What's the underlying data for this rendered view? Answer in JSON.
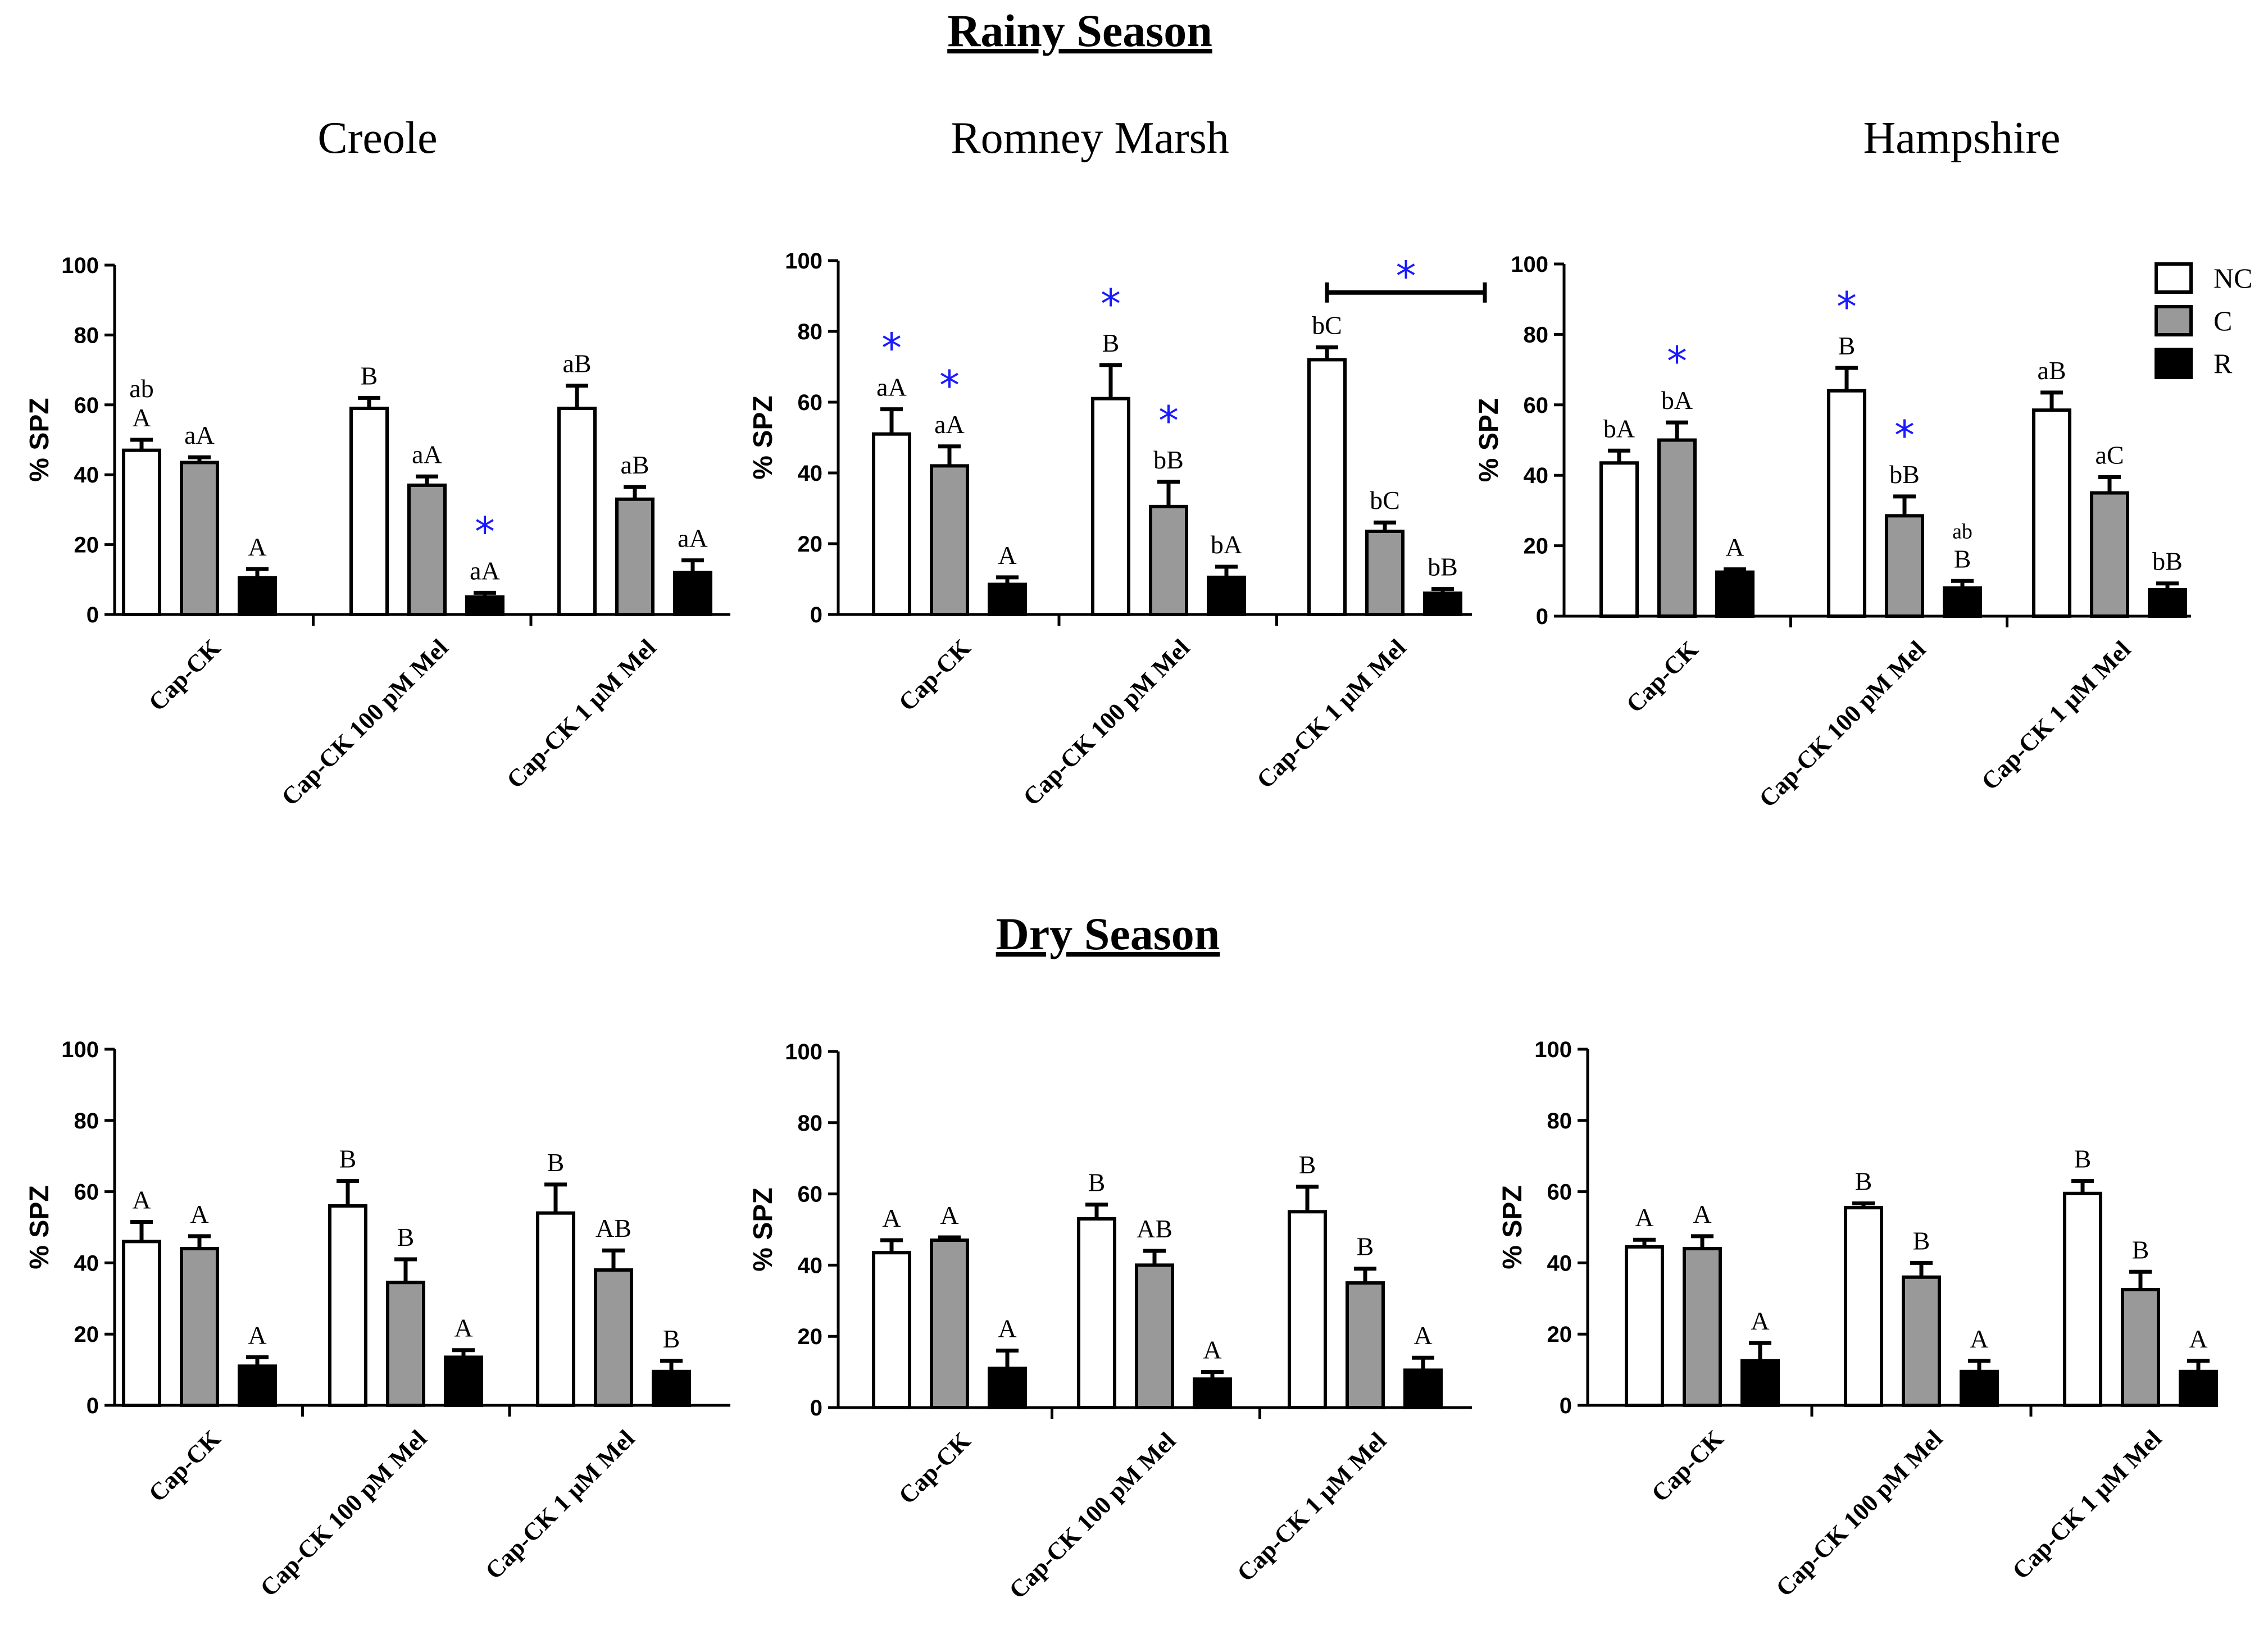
{
  "colors": {
    "NC": "#ffffff",
    "C": "#999999",
    "R": "#000000",
    "star": "#1a1aff"
  },
  "chart_data": [
    {
      "type": "bar",
      "season": "Rainy Season",
      "title": "Creole",
      "ylabel": "% SPZ",
      "ylim": [
        0,
        100
      ],
      "yticks": [
        "0",
        "20",
        "40",
        "60",
        "80",
        "100"
      ],
      "categories": [
        "Cap-CK",
        "Cap-CK 100 pM Mel",
        "Cap-CK 1 μM Mel"
      ],
      "series": [
        {
          "name": "NC",
          "values": [
            47,
            59,
            59
          ],
          "errors": [
            3,
            3,
            6.5
          ],
          "labels": [
            "ab\nA",
            "B",
            "aB"
          ],
          "stars": [
            false,
            false,
            false
          ]
        },
        {
          "name": "C",
          "values": [
            43.5,
            37,
            33
          ],
          "errors": [
            1.5,
            2.5,
            3.5
          ],
          "labels": [
            "aA",
            "aA",
            "aB"
          ],
          "stars": [
            false,
            false,
            false
          ]
        },
        {
          "name": "R",
          "values": [
            10.5,
            5,
            12
          ],
          "errors": [
            2.5,
            1.2,
            3.5
          ],
          "labels": [
            "A",
            "aA",
            "aA"
          ],
          "stars": [
            false,
            true,
            false
          ]
        }
      ]
    },
    {
      "type": "bar",
      "season": "Rainy Season",
      "title": "Romney Marsh",
      "ylabel": "% SPZ",
      "ylim": [
        0,
        100
      ],
      "yticks": [
        "0",
        "20",
        "40",
        "60",
        "80",
        "100"
      ],
      "categories": [
        "Cap-CK",
        "Cap-CK 100 pM Mel",
        "Cap-CK 1 μM Mel"
      ],
      "series": [
        {
          "name": "NC",
          "values": [
            51,
            61,
            72
          ],
          "errors": [
            7,
            9.5,
            3.5
          ],
          "labels": [
            "aA",
            "B",
            "bC"
          ],
          "stars": [
            true,
            true,
            false
          ]
        },
        {
          "name": "C",
          "values": [
            42,
            30.5,
            23.5
          ],
          "errors": [
            5.5,
            7,
            2.5
          ],
          "labels": [
            "aA",
            "bB",
            "bC"
          ],
          "stars": [
            true,
            true,
            false
          ]
        },
        {
          "name": "R",
          "values": [
            8.5,
            10.5,
            6
          ],
          "errors": [
            2,
            3,
            1.2
          ],
          "labels": [
            "A",
            "bA",
            "bB"
          ],
          "stars": [
            false,
            false,
            false
          ]
        }
      ],
      "bracket": {
        "category": 2,
        "marker": "*"
      }
    },
    {
      "type": "bar",
      "season": "Rainy Season",
      "title": "Hampshire",
      "ylabel": "% SPZ",
      "ylim": [
        0,
        100
      ],
      "yticks": [
        "0",
        "20",
        "40",
        "60",
        "80",
        "100"
      ],
      "categories": [
        "Cap-CK",
        "Cap-CK 100 pM Mel",
        "Cap-CK 1 μM Mel"
      ],
      "legend": [
        "NC",
        "C",
        "R"
      ],
      "series": [
        {
          "name": "NC",
          "values": [
            43.5,
            64,
            58.5
          ],
          "errors": [
            3.5,
            6.5,
            5
          ],
          "labels": [
            "bA",
            "B",
            "aB"
          ],
          "stars": [
            false,
            true,
            false
          ]
        },
        {
          "name": "C",
          "values": [
            50,
            28.5,
            35
          ],
          "errors": [
            5,
            5.5,
            4.5
          ],
          "labels": [
            "bA",
            "bB",
            "aC"
          ],
          "stars": [
            true,
            true,
            false
          ]
        },
        {
          "name": "R",
          "values": [
            12.5,
            8,
            7.5
          ],
          "errors": [
            0.8,
            2,
            1.8
          ],
          "labels": [
            "A",
            "ab\nB",
            "bB"
          ],
          "stars": [
            false,
            false,
            false
          ]
        }
      ]
    },
    {
      "type": "bar",
      "season": "Dry Season",
      "title": "",
      "ylabel": "% SPZ",
      "ylim": [
        0,
        100
      ],
      "yticks": [
        "0",
        "20",
        "40",
        "60",
        "80",
        "100"
      ],
      "categories": [
        "Cap-CK",
        "Cap-CK 100 pM Mel",
        "Cap-CK 1 μM Mel"
      ],
      "series": [
        {
          "name": "NC",
          "values": [
            46,
            56,
            54
          ],
          "errors": [
            5.5,
            7,
            8
          ],
          "labels": [
            "A",
            "B",
            "B"
          ],
          "stars": [
            false,
            false,
            false
          ]
        },
        {
          "name": "C",
          "values": [
            44,
            34.5,
            38
          ],
          "errors": [
            3.5,
            6.5,
            5.5
          ],
          "labels": [
            "A",
            "B",
            "AB"
          ],
          "stars": [
            false,
            false,
            false
          ]
        },
        {
          "name": "R",
          "values": [
            11,
            13.5,
            9.5
          ],
          "errors": [
            2.5,
            2,
            3
          ],
          "labels": [
            "A",
            "A",
            "B"
          ],
          "stars": [
            false,
            false,
            false
          ]
        }
      ]
    },
    {
      "type": "bar",
      "season": "Dry Season",
      "title": "",
      "ylabel": "% SPZ",
      "ylim": [
        0,
        100
      ],
      "yticks": [
        "0",
        "20",
        "40",
        "60",
        "80",
        "100"
      ],
      "categories": [
        "Cap-CK",
        "Cap-CK 100 pM Mel",
        "Cap-CK 1 μM Mel"
      ],
      "series": [
        {
          "name": "NC",
          "values": [
            43.5,
            53,
            55
          ],
          "errors": [
            3.5,
            4,
            7
          ],
          "labels": [
            "A",
            "B",
            "B"
          ],
          "stars": [
            false,
            false,
            false
          ]
        },
        {
          "name": "C",
          "values": [
            47,
            40,
            35
          ],
          "errors": [
            0.8,
            4,
            4
          ],
          "labels": [
            "A",
            "AB",
            "B"
          ],
          "stars": [
            false,
            false,
            false
          ]
        },
        {
          "name": "R",
          "values": [
            11,
            8,
            10.5
          ],
          "errors": [
            5,
            2,
            3.5
          ],
          "labels": [
            "A",
            "A",
            "A"
          ],
          "stars": [
            false,
            false,
            false
          ]
        }
      ]
    },
    {
      "type": "bar",
      "season": "Dry Season",
      "title": "",
      "ylabel": "% SPZ",
      "ylim": [
        0,
        100
      ],
      "yticks": [
        "0",
        "20",
        "40",
        "60",
        "80",
        "100"
      ],
      "categories": [
        "Cap-CK",
        "Cap-CK 100 pM Mel",
        "Cap-CK 1 μM Mel"
      ],
      "series": [
        {
          "name": "NC",
          "values": [
            44.5,
            55.5,
            59.5
          ],
          "errors": [
            2,
            1.2,
            3.5
          ],
          "labels": [
            "A",
            "B",
            "B"
          ],
          "stars": [
            false,
            false,
            false
          ]
        },
        {
          "name": "C",
          "values": [
            44,
            36,
            32.5
          ],
          "errors": [
            3.5,
            4,
            5
          ],
          "labels": [
            "A",
            "B",
            "B"
          ],
          "stars": [
            false,
            false,
            false
          ]
        },
        {
          "name": "R",
          "values": [
            12.5,
            9.5,
            9.5
          ],
          "errors": [
            5,
            3,
            3
          ],
          "labels": [
            "A",
            "A",
            "A"
          ],
          "stars": [
            false,
            false,
            false
          ]
        }
      ]
    }
  ],
  "headings": {
    "rainy": "Rainy Season",
    "dry": "Dry Season"
  }
}
